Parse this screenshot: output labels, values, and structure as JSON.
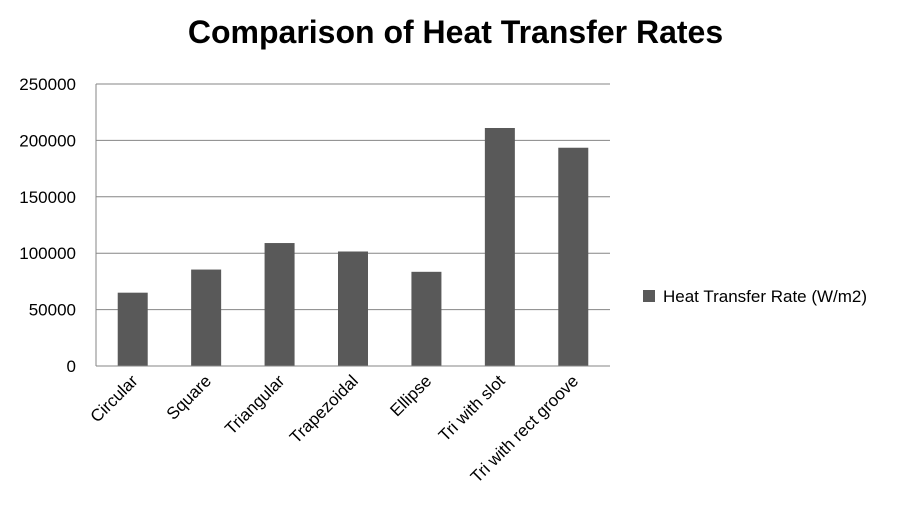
{
  "chart_data": {
    "type": "bar",
    "title": "Comparison of Heat Transfer Rates",
    "categories": [
      "Circular",
      "Square",
      "Triangular",
      "Trapezoidal",
      "Ellipse",
      "Tri with slot",
      "Tri with rect groove"
    ],
    "series": [
      {
        "name": "Heat Transfer Rate (W/m2)",
        "values": [
          65000,
          85500,
          109000,
          101500,
          83500,
          211000,
          193500
        ],
        "color": "#595959"
      }
    ],
    "ylim": [
      0,
      250000
    ],
    "yticks": [
      0,
      50000,
      100000,
      150000,
      200000,
      250000
    ],
    "grid": true,
    "legend_position": "right"
  }
}
